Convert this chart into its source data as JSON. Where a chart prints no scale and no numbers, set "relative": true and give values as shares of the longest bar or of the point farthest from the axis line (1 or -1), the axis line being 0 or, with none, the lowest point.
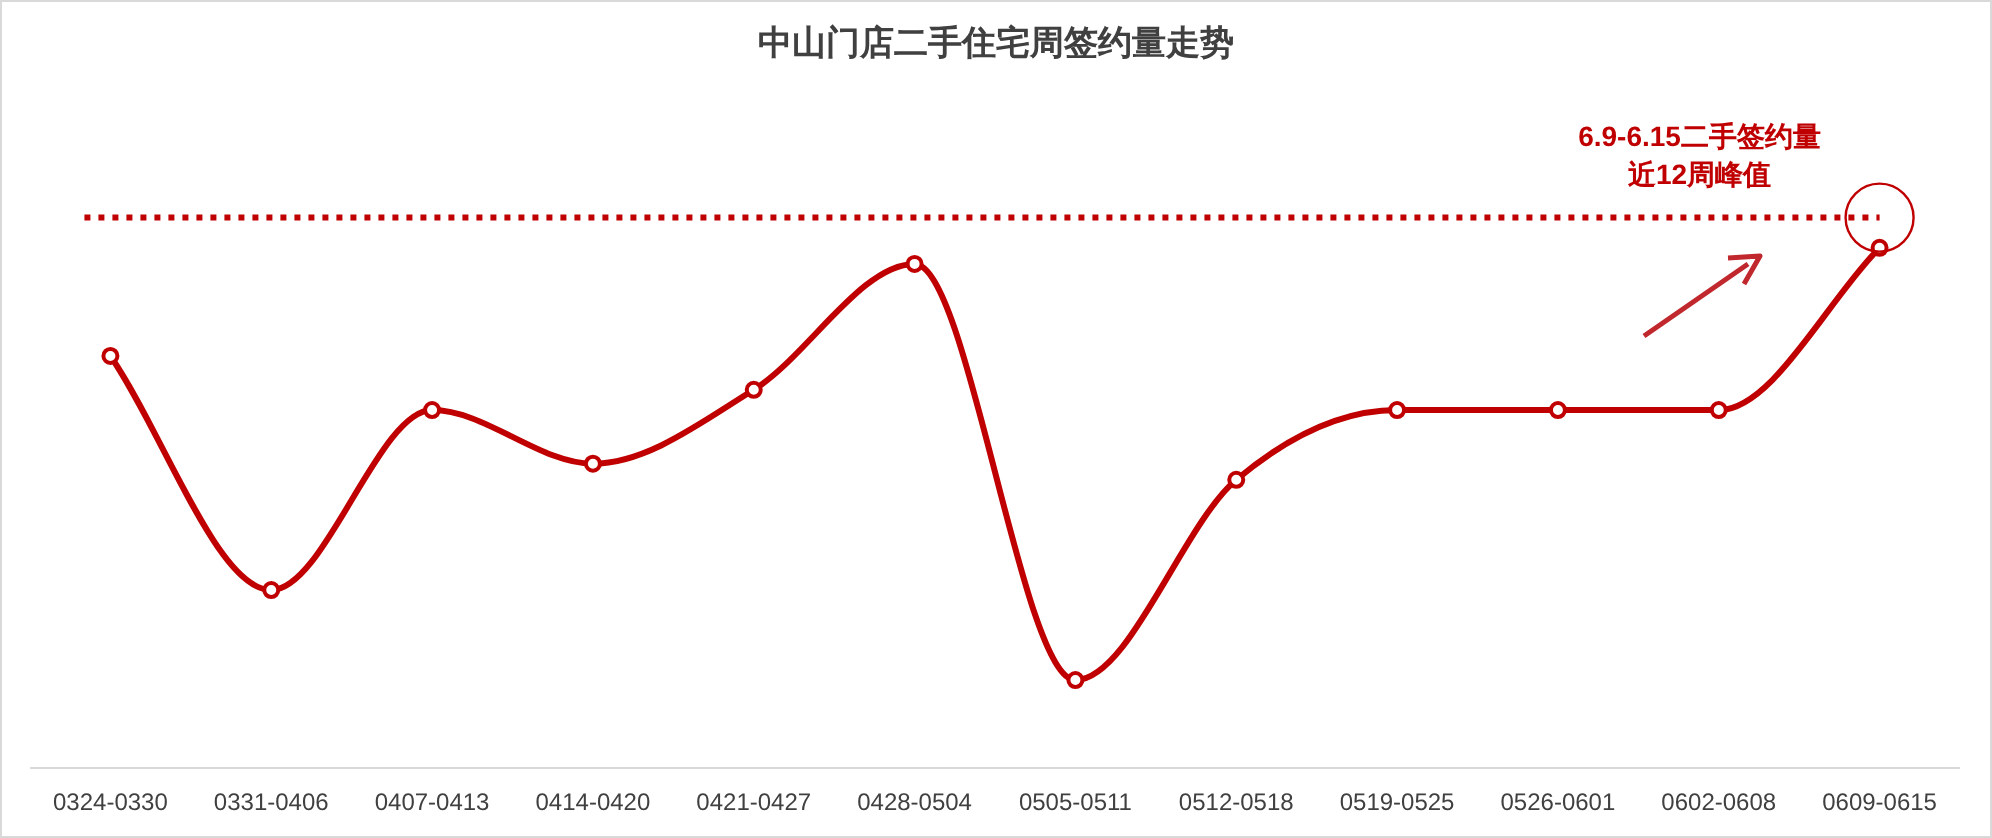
{
  "chart_data": {
    "type": "line",
    "title": "中山门店二手住宅周签约量走势",
    "categories": [
      "0324-0330",
      "0331-0406",
      "0407-0413",
      "0414-0420",
      "0421-0427",
      "0428-0504",
      "0505-0511",
      "0512-0518",
      "0519-0525",
      "0526-0601",
      "0602-0608",
      "0609-0615"
    ],
    "series": [
      {
        "color": "#c00000",
        "values": [
          0.792,
          0.342,
          0.688,
          0.585,
          0.727,
          0.969,
          0.169,
          0.554,
          0.688,
          0.688,
          0.688,
          1
        ]
      }
    ],
    "relative": true,
    "marker": "circle",
    "line_style": "solid",
    "ref_lines": [
      {
        "axis": "y",
        "value": 1.058,
        "color": "#c00000",
        "line_style": "dotted"
      }
    ],
    "annotations": [
      "6.9-6.15二手签约量",
      "近12周峰值"
    ]
  }
}
